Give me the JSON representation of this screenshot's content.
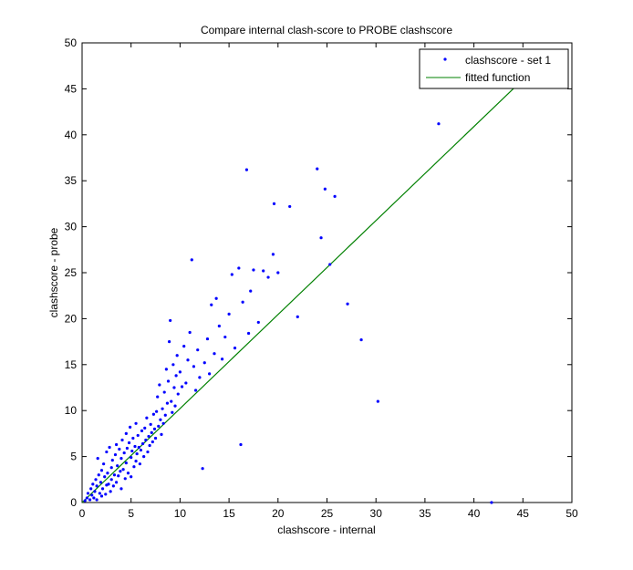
{
  "chart_data": {
    "type": "scatter",
    "title": "Compare internal clash-score to PROBE clashscore",
    "xlabel": "clashscore - internal",
    "ylabel": "clashscore - probe",
    "xlim": [
      0,
      50
    ],
    "ylim": [
      0,
      50
    ],
    "xticks": [
      0,
      5,
      10,
      15,
      20,
      25,
      30,
      35,
      40,
      45,
      50
    ],
    "yticks": [
      0,
      5,
      10,
      15,
      20,
      25,
      30,
      35,
      40,
      45,
      50
    ],
    "grid": false,
    "legend_position": "top-right",
    "series": [
      {
        "name": "clashscore - set 1",
        "kind": "scatter",
        "color": "#0000FF",
        "marker": "dot",
        "points": [
          [
            0.3,
            0.2
          ],
          [
            0.5,
            0.5
          ],
          [
            0.6,
            1.0
          ],
          [
            0.8,
            0.3
          ],
          [
            0.9,
            1.5
          ],
          [
            1.0,
            0.8
          ],
          [
            1.1,
            2.0
          ],
          [
            1.2,
            0.5
          ],
          [
            1.3,
            1.2
          ],
          [
            1.4,
            2.5
          ],
          [
            1.5,
            0.3
          ],
          [
            1.5,
            1.8
          ],
          [
            1.6,
            4.8
          ],
          [
            1.7,
            3.0
          ],
          [
            1.8,
            1.0
          ],
          [
            1.9,
            2.2
          ],
          [
            2.0,
            0.7
          ],
          [
            2.0,
            3.5
          ],
          [
            2.1,
            1.5
          ],
          [
            2.2,
            4.2
          ],
          [
            2.3,
            2.8
          ],
          [
            2.4,
            0.9
          ],
          [
            2.5,
            1.9
          ],
          [
            2.5,
            5.5
          ],
          [
            2.6,
            3.2
          ],
          [
            2.7,
            2.0
          ],
          [
            2.8,
            6.0
          ],
          [
            2.9,
            1.2
          ],
          [
            3.0,
            3.8
          ],
          [
            3.0,
            2.5
          ],
          [
            3.1,
            4.6
          ],
          [
            3.2,
            1.8
          ],
          [
            3.3,
            3.0
          ],
          [
            3.4,
            5.2
          ],
          [
            3.5,
            2.2
          ],
          [
            3.5,
            6.3
          ],
          [
            3.6,
            4.0
          ],
          [
            3.7,
            2.9
          ],
          [
            3.8,
            5.8
          ],
          [
            3.9,
            3.4
          ],
          [
            4.0,
            1.5
          ],
          [
            4.0,
            4.8
          ],
          [
            4.1,
            6.8
          ],
          [
            4.2,
            3.6
          ],
          [
            4.3,
            5.4
          ],
          [
            4.4,
            2.6
          ],
          [
            4.5,
            7.5
          ],
          [
            4.5,
            4.3
          ],
          [
            4.6,
            5.9
          ],
          [
            4.7,
            3.2
          ],
          [
            4.8,
            6.5
          ],
          [
            4.9,
            8.2
          ],
          [
            5.0,
            4.9
          ],
          [
            5.0,
            2.8
          ],
          [
            5.1,
            5.6
          ],
          [
            5.2,
            7.0
          ],
          [
            5.3,
            3.9
          ],
          [
            5.4,
            6.1
          ],
          [
            5.5,
            4.5
          ],
          [
            5.5,
            8.6
          ],
          [
            5.6,
            5.3
          ],
          [
            5.7,
            7.3
          ],
          [
            5.8,
            6.0
          ],
          [
            5.9,
            4.2
          ],
          [
            6.0,
            5.7
          ],
          [
            6.1,
            7.8
          ],
          [
            6.2,
            6.4
          ],
          [
            6.3,
            5.0
          ],
          [
            6.4,
            8.1
          ],
          [
            6.5,
            6.8
          ],
          [
            6.6,
            9.2
          ],
          [
            6.7,
            5.5
          ],
          [
            6.8,
            7.2
          ],
          [
            6.9,
            6.2
          ],
          [
            7.0,
            8.5
          ],
          [
            7.1,
            7.6
          ],
          [
            7.2,
            6.6
          ],
          [
            7.3,
            9.6
          ],
          [
            7.4,
            8.0
          ],
          [
            7.5,
            7.0
          ],
          [
            7.6,
            9.9
          ],
          [
            7.7,
            11.5
          ],
          [
            7.8,
            8.3
          ],
          [
            7.9,
            12.8
          ],
          [
            8.0,
            9.0
          ],
          [
            8.1,
            7.4
          ],
          [
            8.2,
            10.2
          ],
          [
            8.3,
            8.6
          ],
          [
            8.4,
            12.0
          ],
          [
            8.5,
            9.5
          ],
          [
            8.6,
            14.5
          ],
          [
            8.7,
            10.8
          ],
          [
            8.8,
            13.2
          ],
          [
            8.9,
            17.5
          ],
          [
            9.0,
            19.8
          ],
          [
            9.1,
            11.0
          ],
          [
            9.2,
            9.8
          ],
          [
            9.3,
            15.0
          ],
          [
            9.4,
            12.5
          ],
          [
            9.5,
            10.5
          ],
          [
            9.6,
            13.8
          ],
          [
            9.7,
            16.0
          ],
          [
            9.8,
            11.8
          ],
          [
            10.0,
            14.2
          ],
          [
            10.2,
            12.6
          ],
          [
            10.4,
            17.0
          ],
          [
            10.6,
            13.0
          ],
          [
            10.8,
            15.5
          ],
          [
            11.0,
            18.5
          ],
          [
            11.2,
            26.4
          ],
          [
            11.4,
            14.8
          ],
          [
            11.6,
            12.2
          ],
          [
            11.8,
            16.6
          ],
          [
            12.0,
            13.6
          ],
          [
            12.3,
            3.7
          ],
          [
            12.5,
            15.2
          ],
          [
            12.8,
            17.8
          ],
          [
            13.0,
            14.0
          ],
          [
            13.2,
            21.5
          ],
          [
            13.5,
            16.2
          ],
          [
            13.7,
            22.2
          ],
          [
            14.0,
            19.2
          ],
          [
            14.3,
            15.6
          ],
          [
            14.6,
            18.0
          ],
          [
            15.0,
            20.5
          ],
          [
            15.3,
            24.8
          ],
          [
            15.6,
            16.8
          ],
          [
            16.0,
            25.5
          ],
          [
            16.2,
            6.3
          ],
          [
            16.4,
            21.8
          ],
          [
            16.8,
            36.2
          ],
          [
            17.0,
            18.4
          ],
          [
            17.2,
            23.0
          ],
          [
            17.5,
            25.3
          ],
          [
            18.0,
            19.6
          ],
          [
            18.5,
            25.2
          ],
          [
            19.0,
            24.5
          ],
          [
            19.5,
            27.0
          ],
          [
            19.6,
            32.5
          ],
          [
            20.0,
            25.0
          ],
          [
            21.2,
            32.2
          ],
          [
            22.0,
            20.2
          ],
          [
            24.0,
            36.3
          ],
          [
            24.4,
            28.8
          ],
          [
            24.8,
            34.1
          ],
          [
            25.3,
            25.9
          ],
          [
            25.8,
            33.3
          ],
          [
            27.1,
            21.6
          ],
          [
            28.5,
            17.7
          ],
          [
            30.2,
            11.0
          ],
          [
            36.4,
            41.2
          ],
          [
            41.8,
            0.0
          ]
        ]
      },
      {
        "name": "fitted function",
        "kind": "line",
        "color": "#008000",
        "points": [
          [
            0,
            0
          ],
          [
            44.6,
            45.6
          ]
        ]
      }
    ]
  }
}
